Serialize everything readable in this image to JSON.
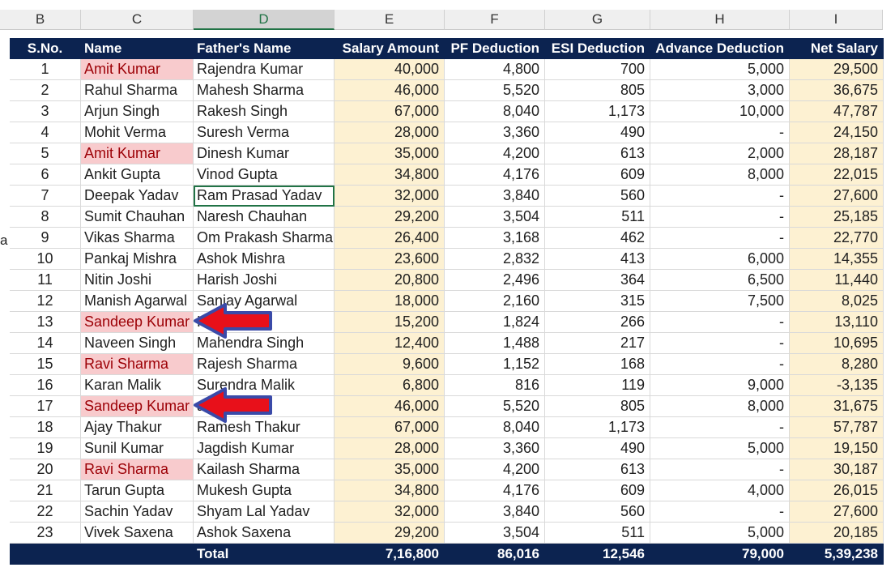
{
  "columns": [
    "B",
    "C",
    "D",
    "E",
    "F",
    "G",
    "H",
    "I"
  ],
  "selected_column": "D",
  "headers": {
    "sno": "S.No.",
    "name": "Name",
    "father": "Father's Name",
    "salary": "Salary Amount",
    "pf": "PF Deduction",
    "esi": "ESI Deduction",
    "advance": "Advance Deduction",
    "net": "Net Salary"
  },
  "rows": [
    {
      "sno": "1",
      "name": "Amit Kumar",
      "father": "Rajendra Kumar",
      "salary": "40,000",
      "pf": "4,800",
      "esi": "700",
      "advance": "5,000",
      "net": "29,500",
      "dup": true
    },
    {
      "sno": "2",
      "name": "Rahul Sharma",
      "father": "Mahesh Sharma",
      "salary": "46,000",
      "pf": "5,520",
      "esi": "805",
      "advance": "3,000",
      "net": "36,675",
      "dup": false
    },
    {
      "sno": "3",
      "name": "Arjun Singh",
      "father": "Rakesh Singh",
      "salary": "67,000",
      "pf": "8,040",
      "esi": "1,173",
      "advance": "10,000",
      "net": "47,787",
      "dup": false
    },
    {
      "sno": "4",
      "name": "Mohit Verma",
      "father": "Suresh Verma",
      "salary": "28,000",
      "pf": "3,360",
      "esi": "490",
      "advance": "-",
      "net": "24,150",
      "dup": false
    },
    {
      "sno": "5",
      "name": "Amit Kumar",
      "father": "Dinesh Kumar",
      "salary": "35,000",
      "pf": "4,200",
      "esi": "613",
      "advance": "2,000",
      "net": "28,187",
      "dup": true
    },
    {
      "sno": "6",
      "name": "Ankit Gupta",
      "father": "Vinod Gupta",
      "salary": "34,800",
      "pf": "4,176",
      "esi": "609",
      "advance": "8,000",
      "net": "22,015",
      "dup": false
    },
    {
      "sno": "7",
      "name": "Deepak Yadav",
      "father": "Ram Prasad Yadav",
      "salary": "32,000",
      "pf": "3,840",
      "esi": "560",
      "advance": "-",
      "net": "27,600",
      "dup": false,
      "selected": true
    },
    {
      "sno": "8",
      "name": "Sumit Chauhan",
      "father": "Naresh Chauhan",
      "salary": "29,200",
      "pf": "3,504",
      "esi": "511",
      "advance": "-",
      "net": "25,185",
      "dup": false
    },
    {
      "sno": "9",
      "name": "Vikas Sharma",
      "father": "Om Prakash Sharma",
      "salary": "26,400",
      "pf": "3,168",
      "esi": "462",
      "advance": "-",
      "net": "22,770",
      "dup": false
    },
    {
      "sno": "10",
      "name": "Pankaj Mishra",
      "father": "Ashok Mishra",
      "salary": "23,600",
      "pf": "2,832",
      "esi": "413",
      "advance": "6,000",
      "net": "14,355",
      "dup": false
    },
    {
      "sno": "11",
      "name": "Nitin Joshi",
      "father": "Harish Joshi",
      "salary": "20,800",
      "pf": "2,496",
      "esi": "364",
      "advance": "6,500",
      "net": "11,440",
      "dup": false
    },
    {
      "sno": "12",
      "name": "Manish Agarwal",
      "father": "Sanjay Agarwal",
      "salary": "18,000",
      "pf": "2,160",
      "esi": "315",
      "advance": "7,500",
      "net": "8,025",
      "dup": false
    },
    {
      "sno": "13",
      "name": "Sandeep Kumar",
      "father": "Kumar",
      "salary": "15,200",
      "pf": "1,824",
      "esi": "266",
      "advance": "-",
      "net": "13,110",
      "dup": true
    },
    {
      "sno": "14",
      "name": "Naveen Singh",
      "father": "Mahendra Singh",
      "salary": "12,400",
      "pf": "1,488",
      "esi": "217",
      "advance": "-",
      "net": "10,695",
      "dup": false
    },
    {
      "sno": "15",
      "name": "Ravi Sharma",
      "father": "Rajesh Sharma",
      "salary": "9,600",
      "pf": "1,152",
      "esi": "168",
      "advance": "-",
      "net": "8,280",
      "dup": true
    },
    {
      "sno": "16",
      "name": "Karan Malik",
      "father": "Surendra Malik",
      "salary": "6,800",
      "pf": "816",
      "esi": "119",
      "advance": "9,000",
      "net": "-3,135",
      "dup": false
    },
    {
      "sno": "17",
      "name": "Sandeep Kumar",
      "father": "ar",
      "salary": "46,000",
      "pf": "5,520",
      "esi": "805",
      "advance": "8,000",
      "net": "31,675",
      "dup": true
    },
    {
      "sno": "18",
      "name": "Ajay Thakur",
      "father": "Ramesh Thakur",
      "salary": "67,000",
      "pf": "8,040",
      "esi": "1,173",
      "advance": "-",
      "net": "57,787",
      "dup": false
    },
    {
      "sno": "19",
      "name": "Sunil Kumar",
      "father": "Jagdish Kumar",
      "salary": "28,000",
      "pf": "3,360",
      "esi": "490",
      "advance": "5,000",
      "net": "19,150",
      "dup": false
    },
    {
      "sno": "20",
      "name": "Ravi Sharma",
      "father": "Kailash Sharma",
      "salary": "35,000",
      "pf": "4,200",
      "esi": "613",
      "advance": "-",
      "net": "30,187",
      "dup": true
    },
    {
      "sno": "21",
      "name": "Tarun Gupta",
      "father": "Mukesh Gupta",
      "salary": "34,800",
      "pf": "4,176",
      "esi": "609",
      "advance": "4,000",
      "net": "26,015",
      "dup": false
    },
    {
      "sno": "22",
      "name": "Sachin Yadav",
      "father": "Shyam Lal Yadav",
      "salary": "32,000",
      "pf": "3,840",
      "esi": "560",
      "advance": "-",
      "net": "27,600",
      "dup": false
    },
    {
      "sno": "23",
      "name": "Vivek Saxena",
      "father": "Ashok Saxena",
      "salary": "29,200",
      "pf": "3,504",
      "esi": "511",
      "advance": "5,000",
      "net": "20,185",
      "dup": false
    }
  ],
  "total": {
    "label": "Total",
    "salary": "7,16,800",
    "pf": "86,016",
    "esi": "12,546",
    "advance": "79,000",
    "net": "5,39,238"
  },
  "left_sliver_text": "a",
  "colors": {
    "header_bg": "#0c2350",
    "duplicate_fill": "#f8cbcd",
    "duplicate_text": "#9c0006",
    "amount_fill": "#fdf1d2",
    "arrow_fill": "#e8101a",
    "arrow_stroke": "#3a4aa8"
  },
  "annotations": [
    {
      "type": "arrow",
      "points_to": "Sandeep Kumar",
      "row": "13"
    },
    {
      "type": "arrow",
      "points_to": "Sandeep Kumar",
      "row": "17"
    }
  ]
}
